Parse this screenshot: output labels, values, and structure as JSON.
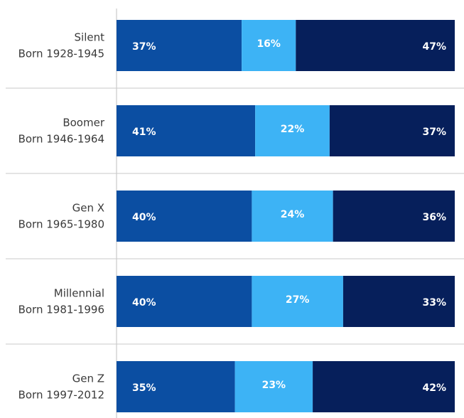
{
  "chart_data": {
    "type": "stacked-bar-horizontal",
    "categories": [
      "Silent",
      "Boomer",
      "Gen X",
      "Millennial",
      "Gen Z"
    ],
    "category_sublabels": [
      "Born 1928-1945",
      "Born 1946-1964",
      "Born 1965-1980",
      "Born 1981-1996",
      "Born 1997-2012"
    ],
    "series": [
      {
        "color": "#0b4ea2",
        "values": [
          37,
          41,
          40,
          40,
          35
        ],
        "value_labels": [
          "37%",
          "41%",
          "40%",
          "40%",
          "35%"
        ]
      },
      {
        "color": "#3db3f5",
        "values": [
          16,
          22,
          24,
          27,
          23
        ],
        "value_labels": [
          "16%",
          "22%",
          "24%",
          "27%",
          "23%"
        ]
      },
      {
        "color": "#061f5b",
        "values": [
          47,
          37,
          36,
          33,
          42
        ],
        "value_labels": [
          "47%",
          "37%",
          "36%",
          "33%",
          "42%"
        ]
      }
    ]
  }
}
